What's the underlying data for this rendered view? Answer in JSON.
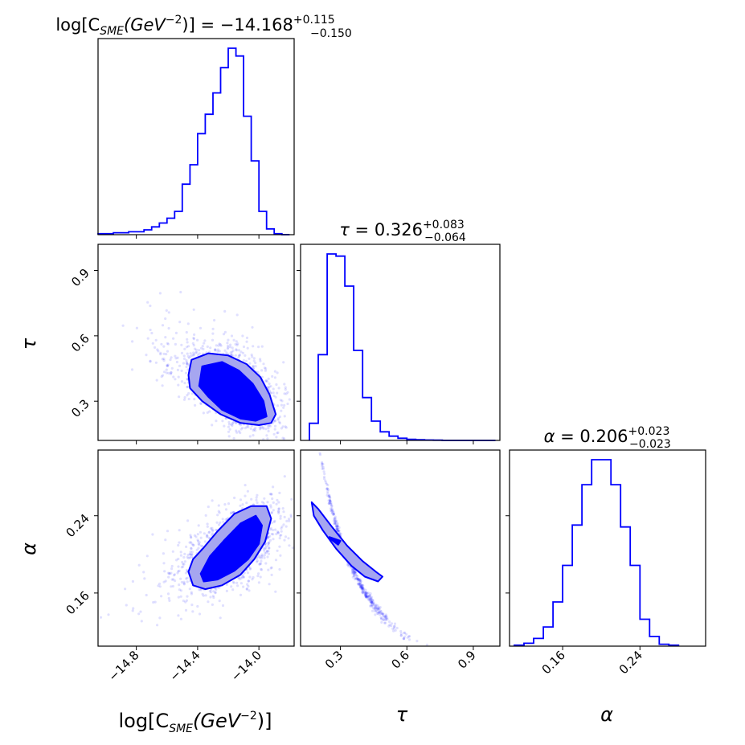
{
  "chart_data": {
    "type": "corner",
    "color": "#0000ff",
    "parameters": [
      {
        "key": "logC",
        "label_main": "log[C",
        "label_sub": "SME",
        "label_paren": "(GeV",
        "label_sup": "−2",
        "label_close": ")]",
        "median": "14.168",
        "median_sign": "−",
        "err_plus": "+0.115",
        "err_minus": "−0.150",
        "range": [
          -15.05,
          -13.77
        ]
      },
      {
        "key": "tau",
        "label": "τ",
        "median": "0.326",
        "err_plus": "+0.083",
        "err_minus": "−0.064",
        "range": [
          0.12,
          1.02
        ]
      },
      {
        "key": "alpha",
        "label": "α",
        "median": "0.206",
        "err_plus": "+0.023",
        "err_minus": "−0.023",
        "range": [
          0.105,
          0.308
        ]
      }
    ],
    "equals": " = ",
    "ticks": {
      "logC": {
        "values": [
          -14.8,
          -14.4,
          -14.0
        ],
        "labels": [
          "−14.8",
          "−14.4",
          "−14.0"
        ]
      },
      "tau": {
        "values": [
          0.3,
          0.6,
          0.9
        ],
        "labels": [
          "0.3",
          "0.6",
          "0.9"
        ]
      },
      "alpha": {
        "values": [
          0.16,
          0.24
        ],
        "labels": [
          "0.16",
          "0.24"
        ]
      }
    },
    "hist_logC": {
      "edges": [
        -15.05,
        -14.95,
        -14.85,
        -14.75,
        -14.7,
        -14.65,
        -14.6,
        -14.55,
        -14.5,
        -14.45,
        -14.4,
        -14.35,
        -14.3,
        -14.25,
        -14.2,
        -14.15,
        -14.1,
        -14.05,
        -14.0,
        -13.95,
        -13.9,
        -13.85,
        -13.8
      ],
      "counts": [
        0.5,
        1.0,
        1.5,
        2.5,
        4.0,
        6.0,
        8.5,
        12.0,
        26.0,
        36.0,
        52.0,
        62.0,
        73.0,
        86.0,
        96.0,
        92.0,
        61.0,
        38.0,
        12.0,
        3.0,
        0.5,
        0
      ]
    },
    "hist_tau": {
      "edges": [
        0.16,
        0.2,
        0.24,
        0.28,
        0.32,
        0.36,
        0.4,
        0.44,
        0.48,
        0.52,
        0.56,
        0.6,
        0.64,
        0.68,
        0.72,
        0.76,
        1.0
      ],
      "counts": [
        8,
        40,
        87,
        86,
        72,
        42,
        20,
        9,
        4,
        2,
        1,
        0.5,
        0.3,
        0.2,
        0.1,
        0
      ]
    },
    "hist_alpha": {
      "edges": [
        0.11,
        0.12,
        0.13,
        0.14,
        0.15,
        0.16,
        0.17,
        0.18,
        0.19,
        0.2,
        0.21,
        0.22,
        0.23,
        0.24,
        0.25,
        0.26,
        0.27,
        0.28
      ],
      "counts": [
        0.5,
        1.5,
        4,
        10,
        23,
        42,
        63,
        84,
        97,
        97,
        84,
        62,
        42,
        14,
        5,
        1,
        0.5
      ]
    },
    "contours": {
      "logC_tau": {
        "outer": [
          [
            -14.44,
            0.49
          ],
          [
            -14.33,
            0.52
          ],
          [
            -14.2,
            0.51
          ],
          [
            -14.08,
            0.47
          ],
          [
            -13.99,
            0.41
          ],
          [
            -13.93,
            0.33
          ],
          [
            -13.89,
            0.24
          ],
          [
            -13.92,
            0.2
          ],
          [
            -14.0,
            0.19
          ],
          [
            -14.12,
            0.2
          ],
          [
            -14.25,
            0.24
          ],
          [
            -14.37,
            0.3
          ],
          [
            -14.45,
            0.36
          ],
          [
            -14.46,
            0.42
          ]
        ],
        "inner": [
          [
            -14.37,
            0.46
          ],
          [
            -14.24,
            0.48
          ],
          [
            -14.13,
            0.44
          ],
          [
            -14.04,
            0.38
          ],
          [
            -13.97,
            0.3
          ],
          [
            -13.95,
            0.23
          ],
          [
            -14.02,
            0.21
          ],
          [
            -14.12,
            0.22
          ],
          [
            -14.24,
            0.26
          ],
          [
            -14.33,
            0.32
          ],
          [
            -14.39,
            0.37
          ]
        ]
      },
      "logC_alpha": {
        "outer": [
          [
            -14.46,
            0.182
          ],
          [
            -14.43,
            0.195
          ],
          [
            -14.36,
            0.207
          ],
          [
            -14.27,
            0.224
          ],
          [
            -14.16,
            0.242
          ],
          [
            -14.05,
            0.25
          ],
          [
            -13.95,
            0.25
          ],
          [
            -13.92,
            0.237
          ],
          [
            -13.96,
            0.213
          ],
          [
            -14.03,
            0.195
          ],
          [
            -14.12,
            0.179
          ],
          [
            -14.24,
            0.168
          ],
          [
            -14.35,
            0.164
          ],
          [
            -14.43,
            0.168
          ]
        ],
        "inner": [
          [
            -14.38,
            0.18
          ],
          [
            -14.32,
            0.198
          ],
          [
            -14.23,
            0.214
          ],
          [
            -14.12,
            0.232
          ],
          [
            -14.02,
            0.24
          ],
          [
            -13.98,
            0.23
          ],
          [
            -14.0,
            0.211
          ],
          [
            -14.07,
            0.195
          ],
          [
            -14.16,
            0.183
          ],
          [
            -14.27,
            0.174
          ],
          [
            -14.36,
            0.172
          ]
        ]
      },
      "tau_alpha": {
        "outer": [
          [
            0.17,
            0.254
          ],
          [
            0.2,
            0.247
          ],
          [
            0.26,
            0.229
          ],
          [
            0.33,
            0.209
          ],
          [
            0.4,
            0.193
          ],
          [
            0.46,
            0.182
          ],
          [
            0.49,
            0.177
          ],
          [
            0.47,
            0.172
          ],
          [
            0.41,
            0.177
          ],
          [
            0.35,
            0.188
          ],
          [
            0.28,
            0.206
          ],
          [
            0.22,
            0.225
          ],
          [
            0.18,
            0.24
          ]
        ],
        "inner": [
          [
            0.25,
            0.218
          ],
          [
            0.3,
            0.214
          ],
          [
            0.29,
            0.21
          ],
          [
            0.26,
            0.215
          ]
        ]
      }
    }
  }
}
